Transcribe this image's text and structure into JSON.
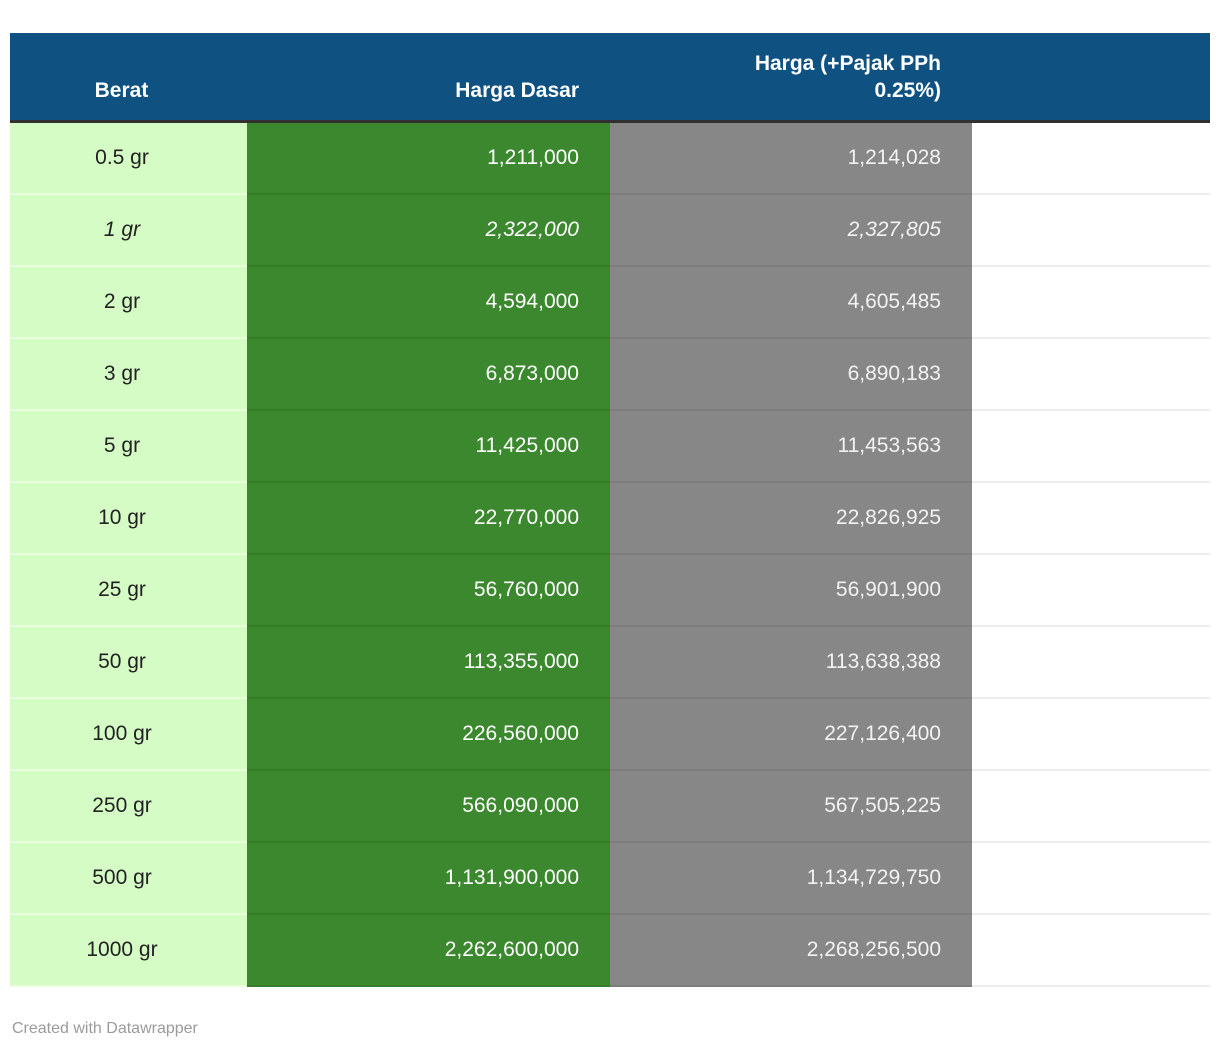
{
  "table": {
    "columns": [
      {
        "label": "Berat"
      },
      {
        "label": "Harga Dasar"
      },
      {
        "label": "Harga (+Pajak PPh\n0.25%)"
      },
      {
        "label": ""
      }
    ],
    "rows": [
      {
        "berat": "0.5 gr",
        "harga_dasar": "1,211,000",
        "harga_pajak": "1,214,028",
        "italic": false
      },
      {
        "berat": "1 gr",
        "harga_dasar": "2,322,000",
        "harga_pajak": "2,327,805",
        "italic": true
      },
      {
        "berat": "2 gr",
        "harga_dasar": "4,594,000",
        "harga_pajak": "4,605,485",
        "italic": false
      },
      {
        "berat": "3 gr",
        "harga_dasar": "6,873,000",
        "harga_pajak": "6,890,183",
        "italic": false
      },
      {
        "berat": "5 gr",
        "harga_dasar": "11,425,000",
        "harga_pajak": "11,453,563",
        "italic": false
      },
      {
        "berat": "10 gr",
        "harga_dasar": "22,770,000",
        "harga_pajak": "22,826,925",
        "italic": false
      },
      {
        "berat": "25 gr",
        "harga_dasar": "56,760,000",
        "harga_pajak": "56,901,900",
        "italic": false
      },
      {
        "berat": "50 gr",
        "harga_dasar": "113,355,000",
        "harga_pajak": "113,638,388",
        "italic": false
      },
      {
        "berat": "100 gr",
        "harga_dasar": "226,560,000",
        "harga_pajak": "227,126,400",
        "italic": false
      },
      {
        "berat": "250 gr",
        "harga_dasar": "566,090,000",
        "harga_pajak": "567,505,225",
        "italic": false
      },
      {
        "berat": "500 gr",
        "harga_dasar": "1,131,900,000",
        "harga_pajak": "1,134,729,750",
        "italic": false
      },
      {
        "berat": "1000 gr",
        "harga_dasar": "2,262,600,000",
        "harga_pajak": "2,268,256,500",
        "italic": false
      }
    ]
  },
  "footer": {
    "credit": "Created with Datawrapper"
  },
  "colors": {
    "header_bg": "#0f5282",
    "header_text": "#ffffff",
    "header_border": "#313131",
    "col_berat_bg": "#d6fcc6",
    "col_dasar_bg": "#3c882f",
    "col_pajak_bg": "#878787",
    "body_text_dark": "#222222",
    "body_text_light": "#ffffff",
    "footer_text": "#9b9b9b"
  },
  "chart_data": {
    "type": "table",
    "columns": [
      "Berat",
      "Harga Dasar",
      "Harga (+Pajak PPh 0.25%)"
    ],
    "rows": [
      [
        "0.5 gr",
        1211000,
        1214028
      ],
      [
        "1 gr",
        2322000,
        2327805
      ],
      [
        "2 gr",
        4594000,
        4605485
      ],
      [
        "3 gr",
        6873000,
        6890183
      ],
      [
        "5 gr",
        11425000,
        11453563
      ],
      [
        "10 gr",
        22770000,
        22826925
      ],
      [
        "25 gr",
        56760000,
        56901900
      ],
      [
        "50 gr",
        113355000,
        113638388
      ],
      [
        "100 gr",
        226560000,
        227126400
      ],
      [
        "250 gr",
        566090000,
        567505225
      ],
      [
        "500 gr",
        1131900000,
        1134729750
      ],
      [
        "1000 gr",
        2262600000,
        2268256500
      ]
    ],
    "title": "",
    "legend_position": "none",
    "notes": "Datawrapper price table; row '1 gr' rendered in italics; columns color-coded (light green, dark green, gray)"
  }
}
